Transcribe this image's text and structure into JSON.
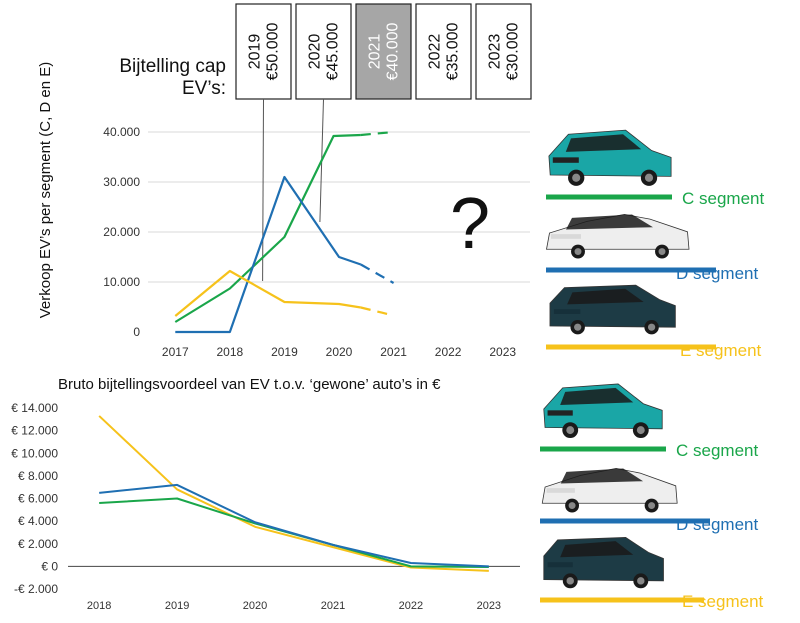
{
  "cap": {
    "label_line1": "Bijtelling cap",
    "label_line2": "EV’s:",
    "boxes": [
      {
        "year": "2019",
        "amount": "€50.000",
        "highlight": false
      },
      {
        "year": "2020",
        "amount": "€45.000",
        "highlight": false
      },
      {
        "year": "2021",
        "amount": "€40.000",
        "highlight": true
      },
      {
        "year": "2022",
        "amount": "€35.000",
        "highlight": false
      },
      {
        "year": "2023",
        "amount": "€30.000",
        "highlight": false
      }
    ]
  },
  "question_mark": "?",
  "segments_top": [
    {
      "label": "C segment",
      "color": "#1aa64a",
      "car": "hatchback"
    },
    {
      "label": "D segment",
      "color": "#1f6fb2",
      "car": "sedan"
    },
    {
      "label": "E segment",
      "color": "#f6c21b",
      "car": "suv"
    }
  ],
  "segments_bottom": [
    {
      "label": "C segment",
      "color": "#1aa64a",
      "car": "hatchback"
    },
    {
      "label": "D segment",
      "color": "#1f6fb2",
      "car": "sedan"
    },
    {
      "label": "E segment",
      "color": "#f6c21b",
      "car": "suv"
    }
  ],
  "chart_data": [
    {
      "type": "line",
      "title": "",
      "xlabel": "",
      "ylabel": "Verkoop EV’s per segment (C, D en E)",
      "x": [
        2017,
        2018,
        2019,
        2020,
        2021,
        2022,
        2023
      ],
      "xticks": [
        "2017",
        "2018",
        "2019",
        "2020",
        "2021",
        "2022",
        "2023"
      ],
      "yticks": [
        0,
        10000,
        20000,
        30000,
        40000
      ],
      "ytick_labels": [
        "0",
        "10.000",
        "20.000",
        "30.000",
        "40.000"
      ],
      "ylim": [
        0,
        42000
      ],
      "grid": true,
      "series": [
        {
          "color": "#1aa64a",
          "x": [
            2017,
            2018,
            2019,
            2019.9,
            2020.4,
            2021
          ],
          "values": [
            2000,
            8700,
            19000,
            39200,
            39400,
            40000
          ],
          "dashed_from_index": 4
        },
        {
          "color": "#1f6fb2",
          "x": [
            2017,
            2018,
            2019,
            2020,
            2020.4,
            2021
          ],
          "values": [
            0,
            0,
            31000,
            15000,
            13500,
            9800
          ],
          "dashed_from_index": 4
        },
        {
          "color": "#f6c21b",
          "x": [
            2017,
            2018,
            2019,
            2020,
            2020.4,
            2021
          ],
          "values": [
            3200,
            12200,
            6000,
            5600,
            4900,
            3300
          ],
          "dashed_from_index": 4
        }
      ],
      "annotation_lines": [
        {
          "from_box": 0,
          "to_x": 2018.6,
          "to_y": 10200
        },
        {
          "from_box": 1,
          "to_x": 2019.65,
          "to_y": 22000
        }
      ]
    },
    {
      "type": "line",
      "title": "Bruto bijtellingsvoordeel van EV t.o.v. ‘gewone’ auto’s in €",
      "xlabel": "",
      "ylabel": "",
      "x": [
        2018,
        2019,
        2020,
        2021,
        2022,
        2023
      ],
      "xticks": [
        "2018",
        "2019",
        "2020",
        "2021",
        "2022",
        "2023"
      ],
      "yticks": [
        -2000,
        0,
        2000,
        4000,
        6000,
        8000,
        10000,
        12000,
        14000
      ],
      "ytick_labels": [
        "-€ 2.000",
        "€ 0",
        "€ 2.000",
        "€ 4.000",
        "€ 6.000",
        "€ 8.000",
        "€ 10.000",
        "€ 12.000",
        "€ 14.000"
      ],
      "ylim": [
        -2000,
        14000
      ],
      "grid": false,
      "series": [
        {
          "color": "#f6c21b",
          "values": [
            13300,
            6800,
            3500,
            1700,
            -100,
            -400
          ]
        },
        {
          "color": "#1aa64a",
          "values": [
            5600,
            6000,
            3800,
            1900,
            0,
            -50
          ]
        },
        {
          "color": "#1f6fb2",
          "values": [
            6500,
            7200,
            3900,
            1900,
            300,
            0
          ]
        }
      ]
    }
  ]
}
